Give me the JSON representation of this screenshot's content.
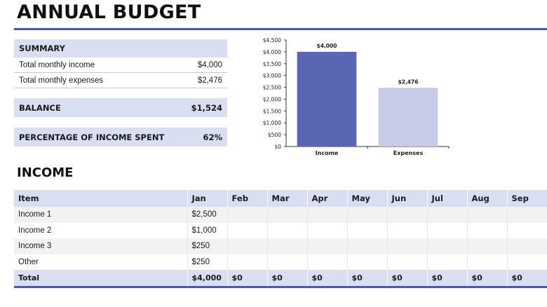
{
  "title": "ANNUAL BUDGET",
  "summary": {
    "header": "SUMMARY",
    "income_label": "Total monthly income",
    "income_value": "$4,000",
    "expenses_label": "Total monthly expenses",
    "expenses_value": "$2,476",
    "balance_label": "BALANCE",
    "balance_value": "$1,524",
    "pct_label": "PERCENTAGE OF INCOME SPENT",
    "pct_value": "62%"
  },
  "chart_data": {
    "type": "bar",
    "categories": [
      "Income",
      "Expenses"
    ],
    "values": [
      4000,
      2476
    ],
    "data_labels": [
      "$4,000",
      "$2,476"
    ],
    "ylim": [
      0,
      4500
    ],
    "yticks": [
      "$0",
      "$500",
      "$1,000",
      "$1,500",
      "$2,000",
      "$2,500",
      "$3,000",
      "$3,500",
      "$4,000",
      "$4,500"
    ],
    "colors": [
      "#5a66b3",
      "#c8cbe8"
    ],
    "grid": false
  },
  "income_section": {
    "title": "INCOME",
    "columns": [
      "Item",
      "Jan",
      "Feb",
      "Mar",
      "Apr",
      "May",
      "Jun",
      "Jul",
      "Aug",
      "Sep"
    ],
    "rows": [
      [
        "Income 1",
        "$2,500",
        "",
        "",
        "",
        "",
        "",
        "",
        "",
        ""
      ],
      [
        "Income 2",
        "$1,000",
        "",
        "",
        "",
        "",
        "",
        "",
        "",
        ""
      ],
      [
        "Income 3",
        "$250",
        "",
        "",
        "",
        "",
        "",
        "",
        "",
        ""
      ],
      [
        "Other",
        "$250",
        "",
        "",
        "",
        "",
        "",
        "",
        "",
        ""
      ]
    ],
    "total": [
      "Total",
      "$4,000",
      "$0",
      "$0",
      "$0",
      "$0",
      "$0",
      "$0",
      "$0",
      "$0"
    ]
  },
  "colors": {
    "accent": "#4a5aa8",
    "band": "#d9dff0",
    "income_bar": "#5a66b3",
    "expenses_bar": "#c8cbe8"
  }
}
